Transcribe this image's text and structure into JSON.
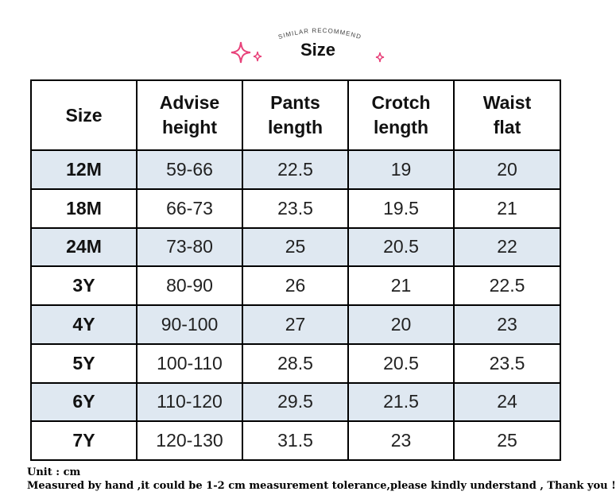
{
  "header": {
    "arc_text": "SIMILAR RECOMMEND",
    "title": "Size"
  },
  "colors": {
    "sparkle": "#e8427a",
    "row_shade": "#dfe8f1",
    "border": "#000000"
  },
  "table": {
    "headers": [
      "Size",
      "Advise height",
      "Pants length",
      "Crotch length",
      "Waist flat"
    ],
    "rows": [
      [
        "12M",
        "59-66",
        "22.5",
        "19",
        "20"
      ],
      [
        "18M",
        "66-73",
        "23.5",
        "19.5",
        "21"
      ],
      [
        "24M",
        "73-80",
        "25",
        "20.5",
        "22"
      ],
      [
        "3Y",
        "80-90",
        "26",
        "21",
        "22.5"
      ],
      [
        "4Y",
        "90-100",
        "27",
        "20",
        "23"
      ],
      [
        "5Y",
        "100-110",
        "28.5",
        "20.5",
        "23.5"
      ],
      [
        "6Y",
        "110-120",
        "29.5",
        "21.5",
        "24"
      ],
      [
        "7Y",
        "120-130",
        "31.5",
        "23",
        "25"
      ]
    ]
  },
  "notes": {
    "unit": "Unit : cm",
    "tolerance": "Measured by hand ,it could be 1-2 cm measurement tolerance,please kindly understand , Thank you !"
  }
}
